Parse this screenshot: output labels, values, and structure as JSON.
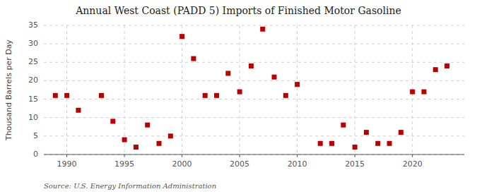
{
  "chart_data": {
    "type": "scatter",
    "title": "Annual West Coast (PADD 5) Imports of Finished Motor Gasoline",
    "y_label": "Thousand Barrels per Day",
    "annotations": [
      "Source: U.S. Energy Information Administration"
    ],
    "x": [
      1989,
      1990,
      1991,
      1993,
      1994,
      1995,
      1996,
      1997,
      1998,
      1999,
      2000,
      2001,
      2002,
      2003,
      2004,
      2005,
      2006,
      2007,
      2008,
      2009,
      2010,
      2012,
      2013,
      2014,
      2015,
      2016,
      2017,
      2018,
      2019,
      2020,
      2021,
      2022,
      2023
    ],
    "values": [
      16,
      16,
      12,
      16,
      9,
      4,
      2,
      8,
      3,
      5,
      32,
      26,
      16,
      16,
      22,
      17,
      24,
      34,
      21,
      16,
      19,
      3,
      3,
      8,
      2,
      6,
      3,
      3,
      6,
      17,
      17,
      23,
      24
    ],
    "color": "#bb0000",
    "marker": "square",
    "xlim": [
      1988.0,
      2024.5
    ],
    "xticks": [
      1990,
      1995,
      2000,
      2005,
      2010,
      2015,
      2020
    ],
    "ylim": [
      0,
      35
    ],
    "yticks": [
      0,
      5,
      10,
      15,
      20,
      25,
      30,
      35
    ],
    "grid": true
  }
}
